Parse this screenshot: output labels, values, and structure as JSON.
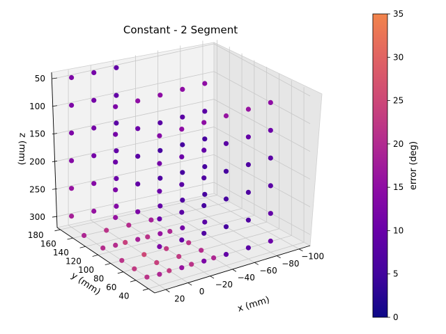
{
  "chart_data": {
    "type": "scatter",
    "projection": "3d",
    "title": "Constant - 2 Segment",
    "xlabel": "x (mm)",
    "ylabel": "y (mm)",
    "zlabel": "z (mm)",
    "x_ticks": [
      "20",
      "0",
      "−20",
      "−40",
      "−60",
      "−80",
      "−100"
    ],
    "y_ticks": [
      "40",
      "60",
      "80",
      "100",
      "120",
      "140",
      "160",
      "180"
    ],
    "z_ticks": [
      "50",
      "100",
      "150",
      "200",
      "250",
      "300"
    ],
    "xlim": [
      30,
      -110
    ],
    "ylim": [
      30,
      185
    ],
    "zlim": [
      320,
      40
    ],
    "colorbar": {
      "label": "error (deg)",
      "min": 0,
      "max": 35,
      "ticks": [
        "0",
        "5",
        "10",
        "15",
        "20",
        "25",
        "30",
        "35"
      ],
      "colormap": "plasma"
    },
    "points": [
      {
        "x": 20,
        "y": 40,
        "z": 50,
        "err": 12
      },
      {
        "x": 0,
        "y": 40,
        "z": 50,
        "err": 13
      },
      {
        "x": -20,
        "y": 40,
        "z": 50,
        "err": 13
      },
      {
        "x": -40,
        "y": 40,
        "z": 50,
        "err": 14
      },
      {
        "x": -60,
        "y": 40,
        "z": 50,
        "err": 14
      },
      {
        "x": -80,
        "y": 40,
        "z": 50,
        "err": 13
      },
      {
        "x": 20,
        "y": 40,
        "z": 100,
        "err": 10
      },
      {
        "x": 0,
        "y": 40,
        "z": 100,
        "err": 9
      },
      {
        "x": -20,
        "y": 40,
        "z": 100,
        "err": 8
      },
      {
        "x": -40,
        "y": 40,
        "z": 100,
        "err": 7
      },
      {
        "x": -60,
        "y": 40,
        "z": 100,
        "err": 8
      },
      {
        "x": -80,
        "y": 40,
        "z": 100,
        "err": 9
      },
      {
        "x": 20,
        "y": 40,
        "z": 150,
        "err": 9
      },
      {
        "x": 0,
        "y": 40,
        "z": 150,
        "err": 7
      },
      {
        "x": -20,
        "y": 40,
        "z": 150,
        "err": 6
      },
      {
        "x": -40,
        "y": 40,
        "z": 150,
        "err": 5
      },
      {
        "x": -60,
        "y": 40,
        "z": 150,
        "err": 6
      },
      {
        "x": -80,
        "y": 40,
        "z": 150,
        "err": 7
      },
      {
        "x": 20,
        "y": 40,
        "z": 200,
        "err": 9
      },
      {
        "x": 0,
        "y": 40,
        "z": 200,
        "err": 7
      },
      {
        "x": -20,
        "y": 40,
        "z": 200,
        "err": 5
      },
      {
        "x": -40,
        "y": 40,
        "z": 200,
        "err": 5
      },
      {
        "x": -60,
        "y": 40,
        "z": 200,
        "err": 6
      },
      {
        "x": -80,
        "y": 40,
        "z": 200,
        "err": 7
      },
      {
        "x": 20,
        "y": 40,
        "z": 250,
        "err": 11
      },
      {
        "x": 0,
        "y": 40,
        "z": 250,
        "err": 8
      },
      {
        "x": -20,
        "y": 40,
        "z": 250,
        "err": 6
      },
      {
        "x": -40,
        "y": 40,
        "z": 250,
        "err": 5
      },
      {
        "x": -60,
        "y": 40,
        "z": 250,
        "err": 6
      },
      {
        "x": -80,
        "y": 40,
        "z": 250,
        "err": 8
      },
      {
        "x": 20,
        "y": 40,
        "z": 300,
        "err": 17
      },
      {
        "x": 0,
        "y": 40,
        "z": 300,
        "err": 14
      },
      {
        "x": -20,
        "y": 40,
        "z": 300,
        "err": 11
      },
      {
        "x": -40,
        "y": 40,
        "z": 300,
        "err": 8
      },
      {
        "x": -60,
        "y": 40,
        "z": 300,
        "err": 7
      },
      {
        "x": -80,
        "y": 40,
        "z": 300,
        "err": 9
      },
      {
        "x": 20,
        "y": 110,
        "z": 50,
        "err": 11
      },
      {
        "x": 0,
        "y": 110,
        "z": 50,
        "err": 13
      },
      {
        "x": -20,
        "y": 110,
        "z": 50,
        "err": 13
      },
      {
        "x": -40,
        "y": 110,
        "z": 50,
        "err": 13
      },
      {
        "x": -60,
        "y": 110,
        "z": 50,
        "err": 13
      },
      {
        "x": 20,
        "y": 110,
        "z": 100,
        "err": 10
      },
      {
        "x": 0,
        "y": 110,
        "z": 100,
        "err": 9
      },
      {
        "x": -20,
        "y": 110,
        "z": 100,
        "err": 7
      },
      {
        "x": -40,
        "y": 110,
        "z": 100,
        "err": 7
      },
      {
        "x": -60,
        "y": 110,
        "z": 100,
        "err": 7
      },
      {
        "x": 20,
        "y": 110,
        "z": 150,
        "err": 9
      },
      {
        "x": 0,
        "y": 110,
        "z": 150,
        "err": 7
      },
      {
        "x": -20,
        "y": 110,
        "z": 150,
        "err": 5
      },
      {
        "x": -40,
        "y": 110,
        "z": 150,
        "err": 5
      },
      {
        "x": -60,
        "y": 110,
        "z": 150,
        "err": 5
      },
      {
        "x": 20,
        "y": 110,
        "z": 200,
        "err": 11
      },
      {
        "x": 0,
        "y": 110,
        "z": 200,
        "err": 8
      },
      {
        "x": -20,
        "y": 110,
        "z": 200,
        "err": 6
      },
      {
        "x": -40,
        "y": 110,
        "z": 200,
        "err": 5
      },
      {
        "x": -60,
        "y": 110,
        "z": 200,
        "err": 5
      },
      {
        "x": 20,
        "y": 110,
        "z": 250,
        "err": 14
      },
      {
        "x": 0,
        "y": 110,
        "z": 250,
        "err": 11
      },
      {
        "x": -20,
        "y": 110,
        "z": 250,
        "err": 8
      },
      {
        "x": -40,
        "y": 110,
        "z": 250,
        "err": 6
      },
      {
        "x": -60,
        "y": 110,
        "z": 250,
        "err": 5
      },
      {
        "x": 20,
        "y": 110,
        "z": 300,
        "err": 18
      },
      {
        "x": 0,
        "y": 110,
        "z": 300,
        "err": 16
      },
      {
        "x": -20,
        "y": 110,
        "z": 300,
        "err": 14
      },
      {
        "x": -40,
        "y": 110,
        "z": 300,
        "err": 10
      },
      {
        "x": -60,
        "y": 110,
        "z": 300,
        "err": 7
      },
      {
        "x": 20,
        "y": 180,
        "z": 50,
        "err": 11
      },
      {
        "x": 0,
        "y": 180,
        "z": 50,
        "err": 10
      },
      {
        "x": -20,
        "y": 180,
        "z": 50,
        "err": 8
      },
      {
        "x": 20,
        "y": 180,
        "z": 100,
        "err": 11
      },
      {
        "x": 0,
        "y": 180,
        "z": 100,
        "err": 10
      },
      {
        "x": -20,
        "y": 180,
        "z": 100,
        "err": 8
      },
      {
        "x": 20,
        "y": 180,
        "z": 150,
        "err": 11
      },
      {
        "x": 0,
        "y": 180,
        "z": 150,
        "err": 10
      },
      {
        "x": -20,
        "y": 180,
        "z": 150,
        "err": 7
      },
      {
        "x": 20,
        "y": 180,
        "z": 200,
        "err": 12
      },
      {
        "x": 0,
        "y": 180,
        "z": 200,
        "err": 10
      },
      {
        "x": -20,
        "y": 180,
        "z": 200,
        "err": 8
      },
      {
        "x": 20,
        "y": 180,
        "z": 250,
        "err": 14
      },
      {
        "x": 0,
        "y": 180,
        "z": 250,
        "err": 12
      },
      {
        "x": -20,
        "y": 180,
        "z": 250,
        "err": 9
      },
      {
        "x": 20,
        "y": 180,
        "z": 300,
        "err": 16
      },
      {
        "x": 0,
        "y": 180,
        "z": 300,
        "err": 14
      },
      {
        "x": -20,
        "y": 180,
        "z": 300,
        "err": 12
      },
      {
        "x": 20,
        "y": 60,
        "z": 320,
        "err": 19
      },
      {
        "x": 0,
        "y": 60,
        "z": 320,
        "err": 20
      },
      {
        "x": -20,
        "y": 60,
        "z": 320,
        "err": 19
      },
      {
        "x": -40,
        "y": 60,
        "z": 320,
        "err": 17
      },
      {
        "x": 20,
        "y": 80,
        "z": 320,
        "err": 20
      },
      {
        "x": 0,
        "y": 80,
        "z": 320,
        "err": 21
      },
      {
        "x": -20,
        "y": 80,
        "z": 320,
        "err": 20
      },
      {
        "x": -40,
        "y": 80,
        "z": 320,
        "err": 18
      },
      {
        "x": 20,
        "y": 100,
        "z": 320,
        "err": 19
      },
      {
        "x": 0,
        "y": 100,
        "z": 320,
        "err": 22
      },
      {
        "x": -20,
        "y": 100,
        "z": 320,
        "err": 20
      },
      {
        "x": -40,
        "y": 100,
        "z": 320,
        "err": 19
      },
      {
        "x": 20,
        "y": 130,
        "z": 320,
        "err": 18
      },
      {
        "x": 0,
        "y": 130,
        "z": 320,
        "err": 21
      },
      {
        "x": -20,
        "y": 130,
        "z": 320,
        "err": 19
      },
      {
        "x": -40,
        "y": 130,
        "z": 320,
        "err": 17
      },
      {
        "x": 20,
        "y": 160,
        "z": 320,
        "err": 17
      },
      {
        "x": 0,
        "y": 160,
        "z": 320,
        "err": 19
      },
      {
        "x": -20,
        "y": 160,
        "z": 320,
        "err": 18
      },
      {
        "x": -40,
        "y": 160,
        "z": 320,
        "err": 16
      }
    ]
  }
}
